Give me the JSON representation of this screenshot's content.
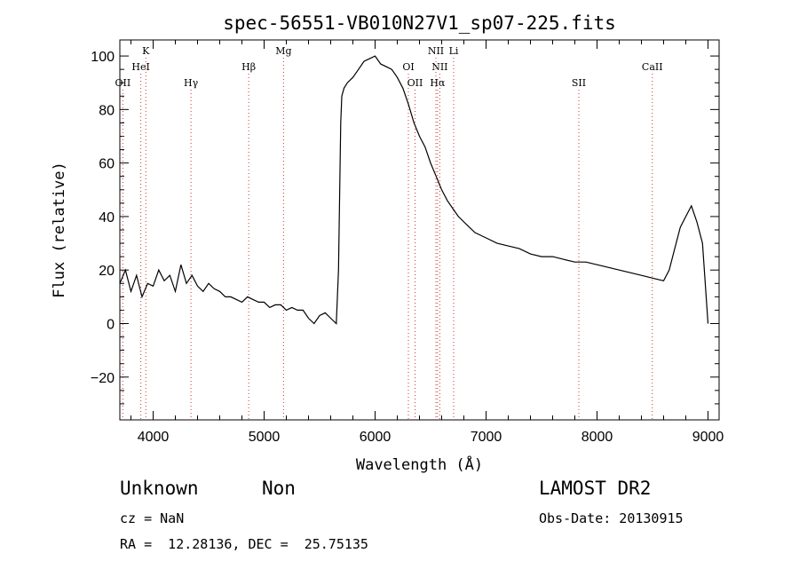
{
  "chart_data": {
    "type": "line",
    "title": "spec-56551-VB010N27V1_sp07-225.fits",
    "xlabel": "Wavelength (Å)",
    "ylabel": "Flux (relative)",
    "xlim": [
      3700,
      9100
    ],
    "ylim": [
      -36,
      106
    ],
    "xticks": [
      4000,
      5000,
      6000,
      7000,
      8000,
      9000
    ],
    "yticks": [
      -20,
      0,
      20,
      40,
      60,
      80,
      100
    ],
    "grid": false,
    "line_color": "#000000",
    "marker_color": "#cc3333",
    "series": [
      {
        "x": [
          3700,
          3750,
          3800,
          3850,
          3900,
          3950,
          4000,
          4050,
          4100,
          4150,
          4200,
          4250,
          4300,
          4350,
          4400,
          4450,
          4500,
          4550,
          4600,
          4650,
          4700,
          4750,
          4800,
          4850,
          4900,
          4950,
          5000,
          5050,
          5100,
          5150,
          5200,
          5250,
          5300,
          5350,
          5400,
          5450,
          5500,
          5550,
          5600,
          5650,
          5670,
          5690,
          5700,
          5720,
          5750,
          5800,
          5850,
          5900,
          5950,
          6000,
          6050,
          6100,
          6150,
          6200,
          6250,
          6300,
          6350,
          6400,
          6450,
          6500,
          6550,
          6600,
          6650,
          6700,
          6750,
          6800,
          6900,
          7000,
          7100,
          7200,
          7300,
          7400,
          7500,
          7600,
          7700,
          7800,
          7900,
          8000,
          8100,
          8200,
          8300,
          8400,
          8500,
          8600,
          8650,
          8700,
          8750,
          8800,
          8850,
          8900,
          8950,
          9000
        ],
        "y": [
          15,
          20,
          12,
          18,
          10,
          15,
          14,
          20,
          16,
          18,
          12,
          22,
          15,
          18,
          14,
          12,
          15,
          13,
          12,
          10,
          10,
          9,
          8,
          10,
          9,
          8,
          8,
          6,
          7,
          7,
          5,
          6,
          5,
          5,
          2,
          0,
          3,
          4,
          2,
          0,
          20,
          75,
          85,
          88,
          90,
          92,
          95,
          98,
          99,
          100,
          97,
          96,
          95,
          92,
          88,
          82,
          75,
          70,
          66,
          60,
          55,
          50,
          46,
          43,
          40,
          38,
          34,
          32,
          30,
          29,
          28,
          26,
          25,
          25,
          24,
          23,
          23,
          22,
          21,
          20,
          19,
          18,
          17,
          16,
          20,
          28,
          36,
          40,
          44,
          38,
          30,
          0
        ]
      }
    ],
    "line_markers": [
      {
        "label": "OII",
        "x": 3727,
        "row": 3
      },
      {
        "label": "K",
        "x": 3934,
        "row": 1
      },
      {
        "label": "HeI",
        "x": 3889,
        "row": 2
      },
      {
        "label": "Hγ",
        "x": 4341,
        "row": 3
      },
      {
        "label": "Hβ",
        "x": 4861,
        "row": 2
      },
      {
        "label": "Mg",
        "x": 5175,
        "row": 1
      },
      {
        "label": "OI",
        "x": 6300,
        "row": 2
      },
      {
        "label": "OII",
        "x": 6360,
        "row": 3
      },
      {
        "label": "NII",
        "x": 6548,
        "row": 1
      },
      {
        "label": "NII",
        "x": 6583,
        "row": 2
      },
      {
        "label": "Hα",
        "x": 6563,
        "row": 3
      },
      {
        "label": "Li",
        "x": 6708,
        "row": 1
      },
      {
        "label": "SII",
        "x": 7836,
        "row": 3
      },
      {
        "label": "CaII",
        "x": 8498,
        "row": 2
      }
    ]
  },
  "info": {
    "class": "Unknown",
    "subclass": "Non",
    "survey": "LAMOST DR2",
    "cz": "cz = NaN",
    "obs_date": "Obs-Date: 20130915",
    "coords": "RA =  12.28136, DEC =  25.75135"
  }
}
